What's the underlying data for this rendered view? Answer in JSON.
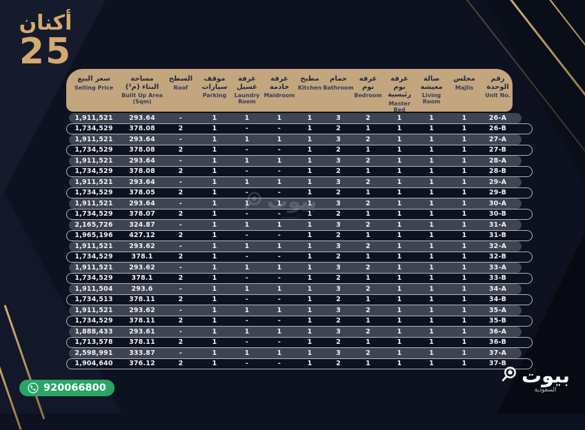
{
  "colors": {
    "background": "#0d1120",
    "gold_accent": "#d4aa70",
    "header_band": "#c3a67e",
    "row_pill": "#3e4452",
    "row_outline": "#b4b8c0",
    "phone_green": "#28a567",
    "text_light": "#f2f3f5",
    "header_text": "#1f273e"
  },
  "logo": {
    "arabic": "أكنان",
    "number": "25"
  },
  "phone": {
    "number": "920066800"
  },
  "bayut_logo": {
    "name": "بيوت",
    "sub": "السعودية"
  },
  "watermark": {
    "name": "بيوت",
    "sub": "السعودية"
  },
  "table": {
    "columns": [
      {
        "key": "price",
        "ar": "سعر البيع",
        "en": "Selling Price"
      },
      {
        "key": "area",
        "ar": "مساحة البناء (م²)",
        "en": "Built Up Area (Sqm)"
      },
      {
        "key": "roof",
        "ar": "السطح",
        "en": "Roof"
      },
      {
        "key": "parking",
        "ar": "موقف سيارات",
        "en": "Parking"
      },
      {
        "key": "laundry",
        "ar": "غرفة غسيل",
        "en": "Laundry Room"
      },
      {
        "key": "maid",
        "ar": "غرفة خادمة",
        "en": "Maidroom"
      },
      {
        "key": "kitchen",
        "ar": "مطبخ",
        "en": "Kitchen"
      },
      {
        "key": "bath",
        "ar": "حمام",
        "en": "Bathroom"
      },
      {
        "key": "bed",
        "ar": "غرفة نوم",
        "en": "Bedroom"
      },
      {
        "key": "master",
        "ar": "غرفة نوم رئيسية",
        "en": "Master Bed"
      },
      {
        "key": "living",
        "ar": "صالة معيشة",
        "en": "Living Room"
      },
      {
        "key": "majlis",
        "ar": "مجلس",
        "en": "Majlis"
      },
      {
        "key": "unit",
        "ar": "رقم الوحدة",
        "en": "Unit No."
      }
    ],
    "rows": [
      [
        "1,911,521",
        "293.64",
        "-",
        "1",
        "1",
        "1",
        "1",
        "3",
        "2",
        "1",
        "1",
        "1",
        "26-A"
      ],
      [
        "1,734,529",
        "378.08",
        "2",
        "1",
        "-",
        "-",
        "1",
        "2",
        "1",
        "1",
        "1",
        "1",
        "26-B"
      ],
      [
        "1,911,521",
        "293.64",
        "-",
        "1",
        "1",
        "1",
        "1",
        "3",
        "2",
        "1",
        "1",
        "1",
        "27-A"
      ],
      [
        "1,734,529",
        "378.08",
        "2",
        "1",
        "-",
        "-",
        "1",
        "2",
        "1",
        "1",
        "1",
        "1",
        "27-B"
      ],
      [
        "1,911,521",
        "293.64",
        "-",
        "1",
        "1",
        "1",
        "1",
        "3",
        "2",
        "1",
        "1",
        "1",
        "28-A"
      ],
      [
        "1,734,529",
        "378.08",
        "2",
        "1",
        "-",
        "-",
        "1",
        "2",
        "1",
        "1",
        "1",
        "1",
        "28-B"
      ],
      [
        "1,911,521",
        "293.64",
        "-",
        "1",
        "1",
        "1",
        "1",
        "3",
        "2",
        "1",
        "1",
        "1",
        "29-A"
      ],
      [
        "1,734,529",
        "378.05",
        "2",
        "1",
        "-",
        "-",
        "1",
        "2",
        "1",
        "1",
        "1",
        "1",
        "29-B"
      ],
      [
        "1,911,521",
        "293.64",
        "-",
        "1",
        "1",
        "1",
        "1",
        "3",
        "2",
        "1",
        "1",
        "1",
        "30-A"
      ],
      [
        "1,734,529",
        "378.07",
        "2",
        "1",
        "-",
        "-",
        "1",
        "2",
        "1",
        "1",
        "1",
        "1",
        "30-B"
      ],
      [
        "2,165,726",
        "324.87",
        "-",
        "1",
        "1",
        "1",
        "1",
        "3",
        "2",
        "1",
        "1",
        "1",
        "31-A"
      ],
      [
        "1,965,196",
        "427.12",
        "2",
        "1",
        "-",
        "-",
        "1",
        "2",
        "1",
        "1",
        "1",
        "1",
        "31-B"
      ],
      [
        "1,911,521",
        "293.62",
        "-",
        "1",
        "1",
        "1",
        "1",
        "3",
        "2",
        "1",
        "1",
        "1",
        "32-A"
      ],
      [
        "1,734,529",
        "378.1",
        "2",
        "1",
        "-",
        "-",
        "1",
        "2",
        "1",
        "1",
        "1",
        "1",
        "32-B"
      ],
      [
        "1,911,521",
        "293.62",
        "-",
        "1",
        "1",
        "1",
        "1",
        "3",
        "2",
        "1",
        "1",
        "1",
        "33-A"
      ],
      [
        "1,734,529",
        "378.1",
        "2",
        "1",
        "-",
        "-",
        "1",
        "2",
        "1",
        "1",
        "1",
        "1",
        "33-B"
      ],
      [
        "1,911,504",
        "293.6",
        "-",
        "1",
        "1",
        "1",
        "1",
        "3",
        "2",
        "1",
        "1",
        "1",
        "34-A"
      ],
      [
        "1,734,513",
        "378.11",
        "2",
        "1",
        "-",
        "-",
        "1",
        "2",
        "1",
        "1",
        "1",
        "1",
        "34-B"
      ],
      [
        "1,911,521",
        "293.62",
        "-",
        "1",
        "1",
        "1",
        "1",
        "3",
        "2",
        "1",
        "1",
        "1",
        "35-A"
      ],
      [
        "1,734,529",
        "378.11",
        "2",
        "1",
        "-",
        "-",
        "1",
        "2",
        "1",
        "1",
        "1",
        "1",
        "35-B"
      ],
      [
        "1,888,433",
        "293.61",
        "-",
        "1",
        "1",
        "1",
        "1",
        "3",
        "2",
        "1",
        "1",
        "1",
        "36-A"
      ],
      [
        "1,713,578",
        "378.11",
        "2",
        "1",
        "-",
        "-",
        "1",
        "2",
        "1",
        "1",
        "1",
        "1",
        "36-B"
      ],
      [
        "2,598,991",
        "333.87",
        "-",
        "1",
        "1",
        "1",
        "1",
        "3",
        "2",
        "1",
        "1",
        "1",
        "37-A"
      ],
      [
        "1,904,640",
        "376.12",
        "2",
        "1",
        "-",
        "-",
        "1",
        "2",
        "1",
        "1",
        "1",
        "1",
        "37-B"
      ]
    ]
  }
}
